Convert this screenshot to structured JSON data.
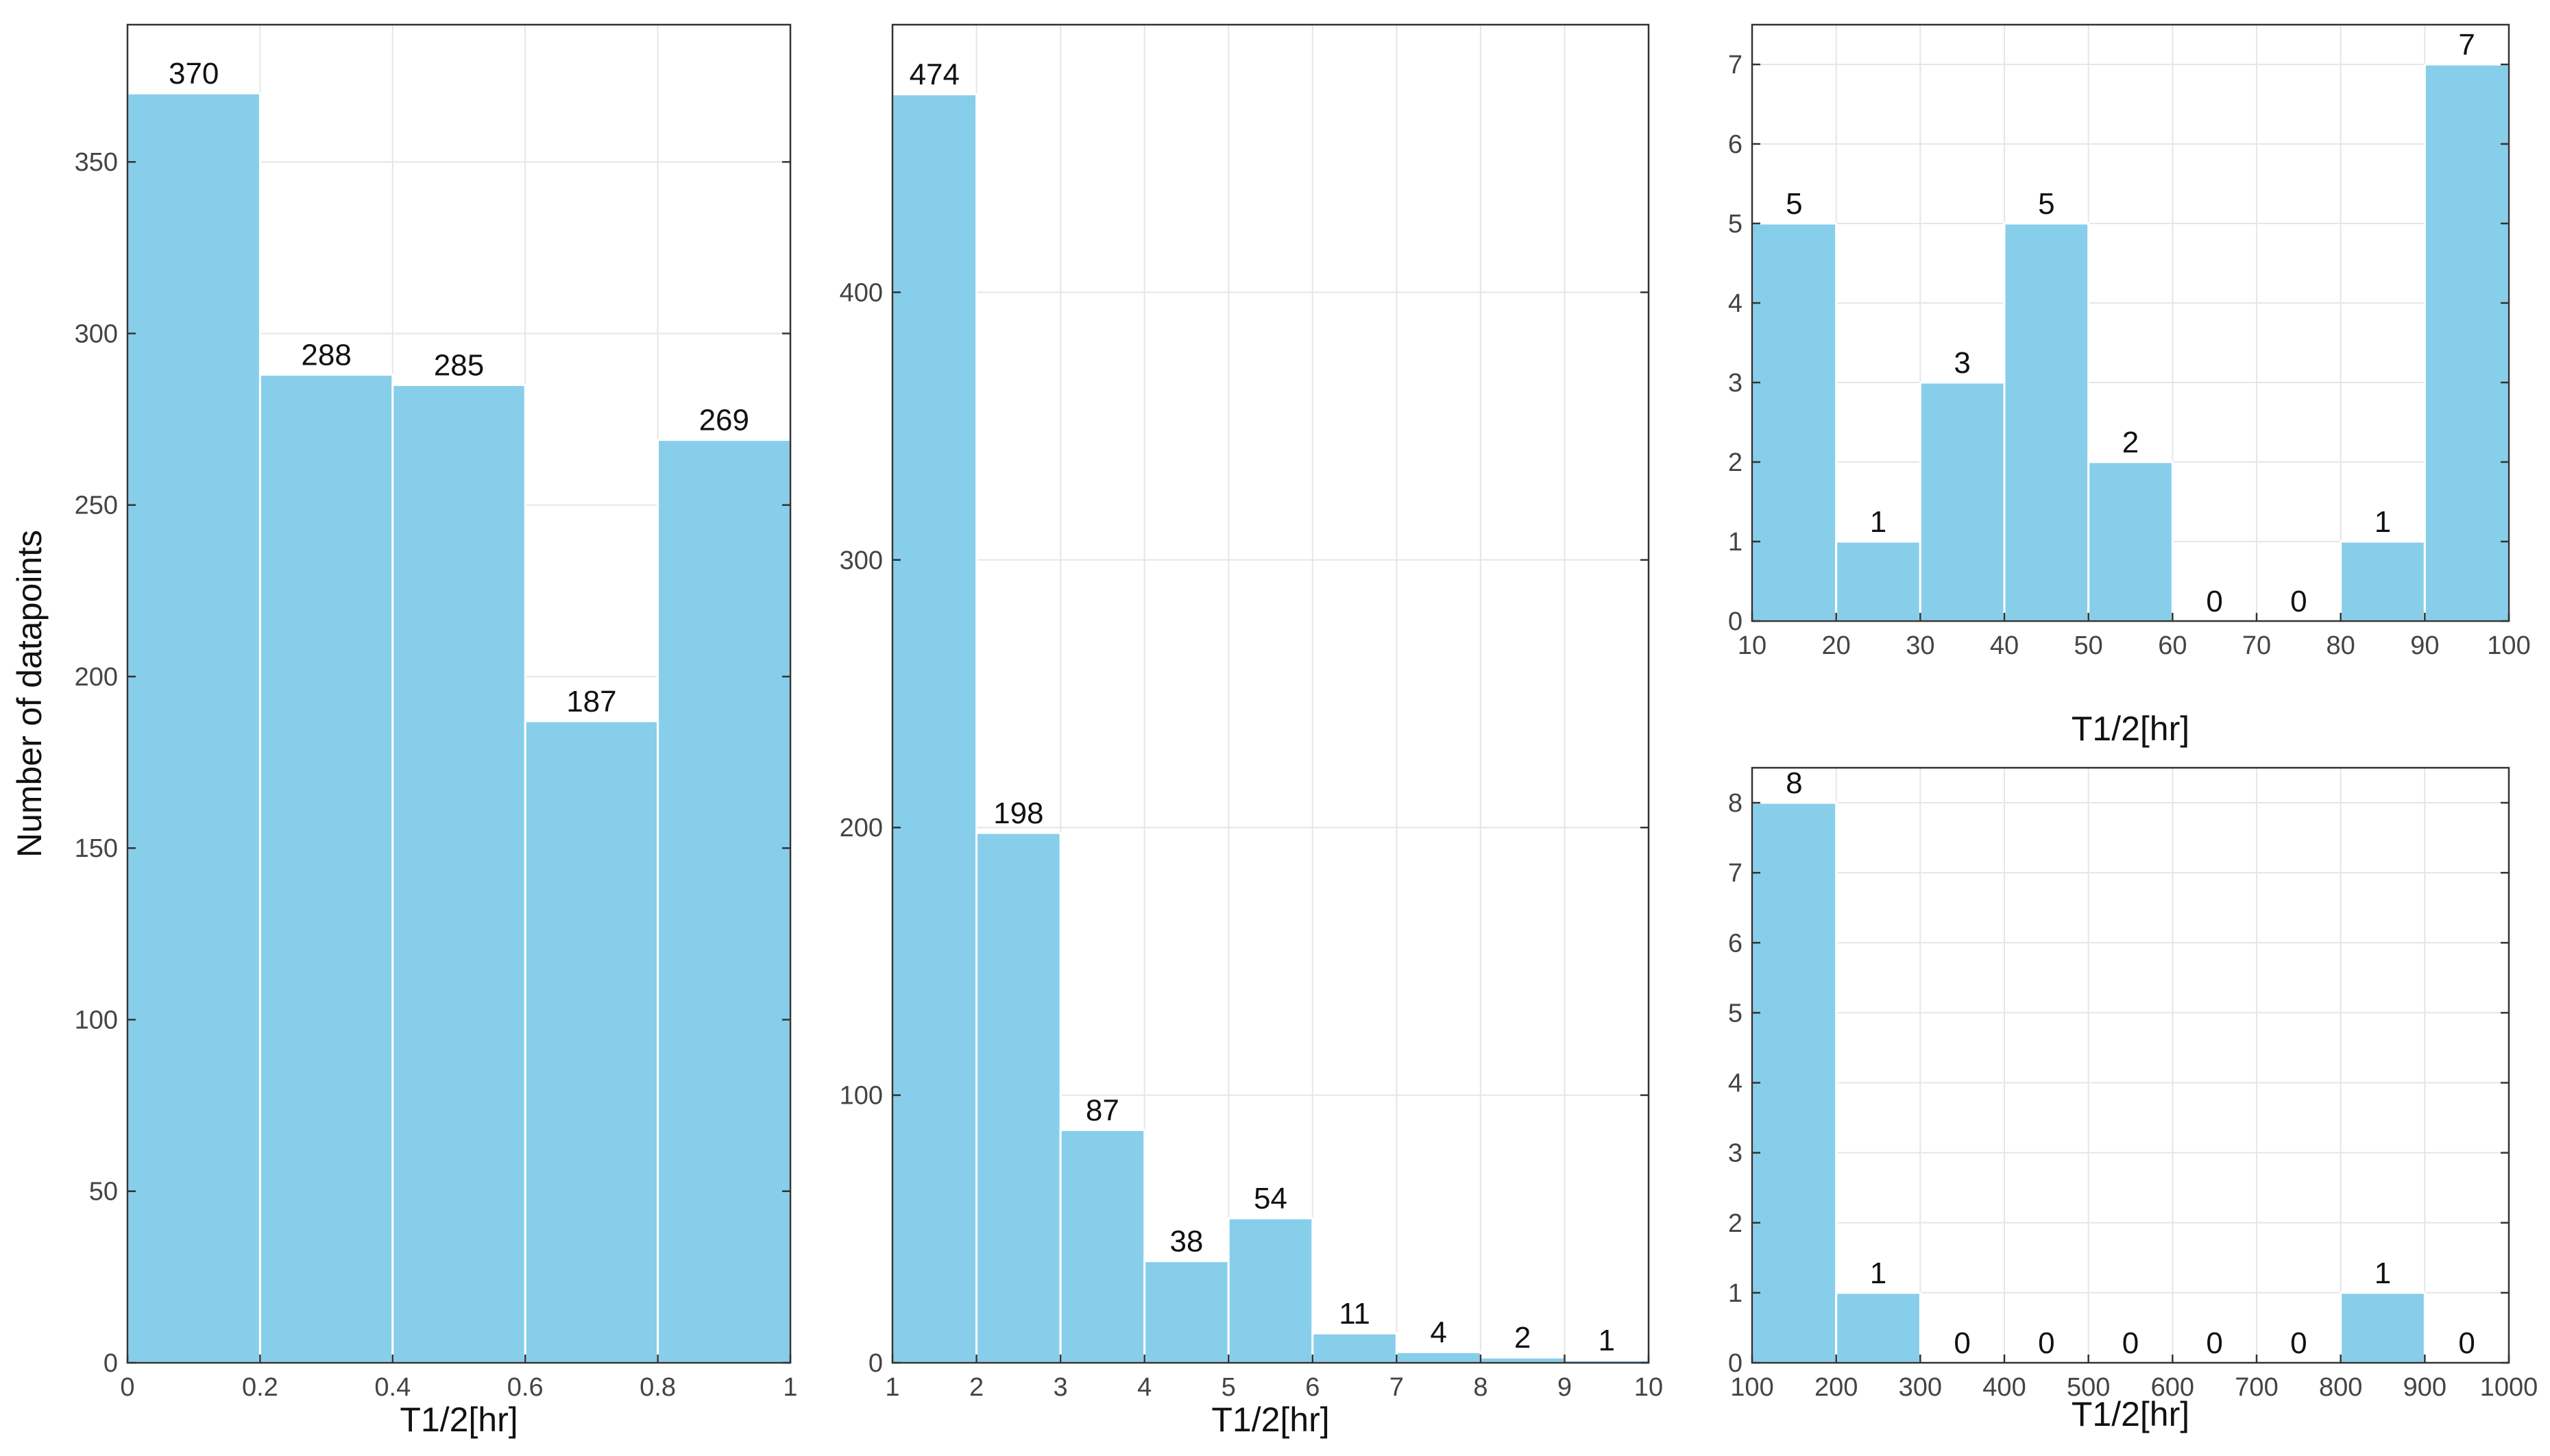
{
  "colors": {
    "bar": "#87CEEB",
    "grid": "#e6e6e6",
    "frame": "#333333",
    "background": "#ffffff"
  },
  "chart_data": [
    {
      "type": "bar",
      "title": "",
      "xlabel": "T1/2[hr]",
      "ylabel": "Number of datapoints",
      "bin_edges": [
        0,
        0.2,
        0.4,
        0.6,
        0.8,
        1
      ],
      "values": [
        370,
        288,
        285,
        187,
        269
      ],
      "data_labels": [
        "370",
        "288",
        "285",
        "187",
        "269"
      ],
      "xlim": [
        0,
        1
      ],
      "ylim": [
        0,
        390
      ],
      "xticks": [
        0,
        0.2,
        0.4,
        0.6,
        0.8,
        1
      ],
      "xtick_labels": [
        "0",
        "0.2",
        "0.4",
        "0.6",
        "0.8",
        "1"
      ],
      "yticks": [
        0,
        50,
        100,
        150,
        200,
        250,
        300,
        350
      ],
      "ytick_labels": [
        "0",
        "50",
        "100",
        "150",
        "200",
        "250",
        "300",
        "350"
      ],
      "grid": true
    },
    {
      "type": "bar",
      "title": "",
      "xlabel": "T1/2[hr]",
      "ylabel": "",
      "bin_edges": [
        1,
        2,
        3,
        4,
        5,
        6,
        7,
        8,
        9,
        10
      ],
      "values": [
        474,
        198,
        87,
        38,
        54,
        11,
        4,
        2,
        1
      ],
      "data_labels": [
        "474",
        "198",
        "87",
        "38",
        "54",
        "11",
        "4",
        "2",
        "1"
      ],
      "xlim": [
        1,
        10
      ],
      "ylim": [
        0,
        500
      ],
      "xticks": [
        1,
        2,
        3,
        4,
        5,
        6,
        7,
        8,
        9,
        10
      ],
      "xtick_labels": [
        "1",
        "2",
        "3",
        "4",
        "5",
        "6",
        "7",
        "8",
        "9",
        "10"
      ],
      "yticks": [
        0,
        100,
        200,
        300,
        400
      ],
      "ytick_labels": [
        "0",
        "100",
        "200",
        "300",
        "400"
      ],
      "grid": true
    },
    {
      "type": "bar",
      "title": "",
      "xlabel": "T1/2[hr]",
      "ylabel": "",
      "bin_edges": [
        10,
        20,
        30,
        40,
        50,
        60,
        70,
        80,
        90,
        100
      ],
      "values": [
        5,
        1,
        3,
        5,
        2,
        0,
        0,
        1,
        7
      ],
      "data_labels": [
        "5",
        "1",
        "3",
        "5",
        "2",
        "0",
        "0",
        "1",
        "7"
      ],
      "xlim": [
        10,
        100
      ],
      "ylim": [
        0,
        7.5
      ],
      "xticks": [
        10,
        20,
        30,
        40,
        50,
        60,
        70,
        80,
        90,
        100
      ],
      "xtick_labels": [
        "10",
        "20",
        "30",
        "40",
        "50",
        "60",
        "70",
        "80",
        "90",
        "100"
      ],
      "yticks": [
        0,
        1,
        2,
        3,
        4,
        5,
        6,
        7
      ],
      "ytick_labels": [
        "0",
        "1",
        "2",
        "3",
        "4",
        "5",
        "6",
        "7"
      ],
      "grid": true
    },
    {
      "type": "bar",
      "title": "",
      "xlabel": "T1/2[hr]",
      "ylabel": "",
      "bin_edges": [
        100,
        200,
        300,
        400,
        500,
        600,
        700,
        800,
        900,
        1000
      ],
      "values": [
        8,
        1,
        0,
        0,
        0,
        0,
        0,
        1,
        0
      ],
      "data_labels": [
        "8",
        "1",
        "0",
        "0",
        "0",
        "0",
        "0",
        "1",
        "0"
      ],
      "xlim": [
        100,
        1000
      ],
      "ylim": [
        0,
        8.5
      ],
      "xticks": [
        100,
        200,
        300,
        400,
        500,
        600,
        700,
        800,
        900,
        1000
      ],
      "xtick_labels": [
        "100",
        "200",
        "300",
        "400",
        "500",
        "600",
        "700",
        "800",
        "900",
        "1000"
      ],
      "yticks": [
        0,
        1,
        2,
        3,
        4,
        5,
        6,
        7,
        8
      ],
      "ytick_labels": [
        "0",
        "1",
        "2",
        "3",
        "4",
        "5",
        "6",
        "7",
        "8"
      ],
      "grid": true
    }
  ]
}
